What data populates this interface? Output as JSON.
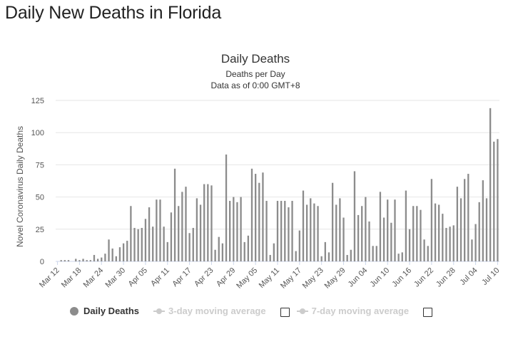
{
  "page": {
    "heading": "Daily New Deaths in Florida"
  },
  "legend": {
    "items": [
      {
        "label": "Daily Deaths",
        "active": true
      },
      {
        "label": "3-day moving average",
        "active": false
      },
      {
        "label": "7-day moving average",
        "active": false
      }
    ]
  },
  "colors": {
    "bar": "#8c8c8c",
    "grid": "#e6e6e6",
    "inactive_legend": "#cccccc"
  },
  "chart_data": {
    "type": "bar",
    "title": "Daily Deaths",
    "subtitle_lines": [
      "Deaths per Day",
      "Data as of 0:00 GMT+8"
    ],
    "ylabel": "Novel Coronavirus Daily Deaths",
    "xlabel": "",
    "ylim": [
      0,
      125
    ],
    "yticks": [
      0,
      25,
      50,
      75,
      100,
      125
    ],
    "grid": true,
    "legend_position": "bottom",
    "start_date": "Mar 12",
    "xtick_labels": [
      "Mar 12",
      "Mar 18",
      "Mar 24",
      "Mar 30",
      "Apr 05",
      "Apr 11",
      "Apr 17",
      "Apr 23",
      "Apr 29",
      "May 05",
      "May 11",
      "May 17",
      "May 23",
      "May 29",
      "Jun 04",
      "Jun 10",
      "Jun 16",
      "Jun 22",
      "Jun 28",
      "Jul 04",
      "Jul 10"
    ],
    "series": [
      {
        "name": "Daily Deaths",
        "values": [
          0,
          1,
          1,
          1,
          0,
          2,
          1,
          2,
          1,
          1,
          5,
          2,
          3,
          6,
          17,
          10,
          4,
          11,
          14,
          16,
          43,
          26,
          25,
          26,
          33,
          42,
          27,
          48,
          48,
          27,
          15,
          38,
          72,
          43,
          54,
          58,
          22,
          26,
          49,
          44,
          60,
          60,
          59,
          9,
          19,
          14,
          83,
          47,
          50,
          46,
          50,
          15,
          20,
          72,
          68,
          61,
          69,
          47,
          5,
          14,
          47,
          47,
          47,
          42,
          47,
          8,
          24,
          55,
          44,
          49,
          45,
          43,
          4,
          15,
          7,
          61,
          44,
          49,
          34,
          5,
          9,
          70,
          36,
          43,
          50,
          31,
          12,
          12,
          54,
          34,
          48,
          30,
          48,
          6,
          7,
          55,
          25,
          43,
          43,
          40,
          17,
          12,
          64,
          45,
          44,
          37,
          26,
          27,
          28,
          58,
          49,
          64,
          68,
          17,
          29,
          46,
          63,
          49,
          119,
          93,
          95
        ]
      }
    ]
  }
}
